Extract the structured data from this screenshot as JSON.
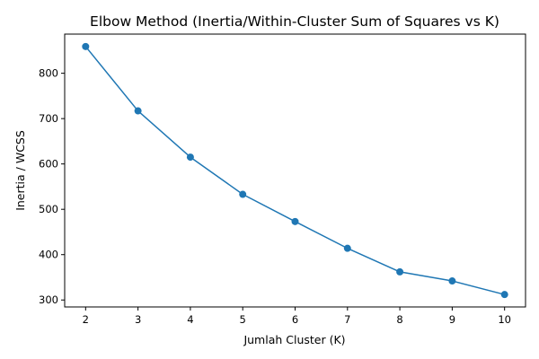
{
  "chart_data": {
    "type": "line",
    "title": "Elbow Method (Inertia/Within-Cluster Sum of Squares vs K)",
    "xlabel": "Jumlah Cluster (K)",
    "ylabel": "Inertia / WCSS",
    "x": [
      2,
      3,
      4,
      5,
      6,
      7,
      8,
      9,
      10
    ],
    "series": [
      {
        "values": [
          859,
          717,
          615,
          533,
          473,
          414,
          362,
          342,
          312
        ],
        "color": "#1f77b4",
        "marker": "circle"
      }
    ],
    "xticks": [
      2,
      3,
      4,
      5,
      6,
      7,
      8,
      9,
      10
    ],
    "yticks": [
      300,
      400,
      500,
      600,
      700,
      800
    ],
    "xlim": [
      1.6,
      10.4
    ],
    "ylim": [
      284.65,
      886.35
    ],
    "grid": false,
    "legend": false
  }
}
